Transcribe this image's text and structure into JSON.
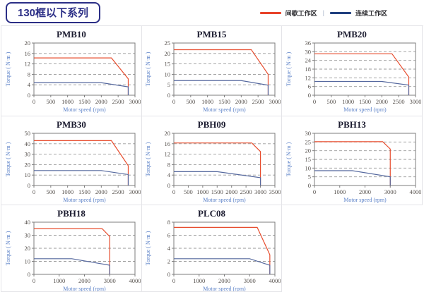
{
  "header": {
    "title": "130框以下系列"
  },
  "legend": {
    "items": [
      {
        "label": "间歇工作区",
        "color": "#e8432a"
      },
      {
        "label": "连续工作区",
        "color": "#20407f"
      }
    ],
    "separator": "|"
  },
  "chart_data": [
    {
      "type": "line",
      "title": "PMB10",
      "xlabel": "Motor speed (rpm)",
      "ylabel": "Torque ( N·m )",
      "xlim": [
        0,
        3000
      ],
      "ylim": [
        0,
        20
      ],
      "xticks": [
        0,
        500,
        1000,
        1500,
        2000,
        2500,
        3000
      ],
      "yticks": [
        0,
        4,
        8,
        12,
        16,
        20
      ],
      "grid": "horizontal-dashed",
      "legend_position": "none",
      "series": [
        {
          "name": "间歇工作区",
          "color": "#e74c2d",
          "points": [
            [
              0,
              14.3
            ],
            [
              2300,
              14.3
            ],
            [
              2800,
              6.3
            ],
            [
              2800,
              0
            ]
          ]
        },
        {
          "name": "连续工作区",
          "color": "#55689e",
          "points": [
            [
              0,
              4.8
            ],
            [
              2000,
              4.8
            ],
            [
              2800,
              3.2
            ],
            [
              2800,
              0
            ]
          ]
        }
      ]
    },
    {
      "type": "line",
      "title": "PMB15",
      "xlabel": "Motor speed (rpm)",
      "ylabel": "Torque ( N·m )",
      "xlim": [
        0,
        3000
      ],
      "ylim": [
        0,
        25
      ],
      "xticks": [
        0,
        500,
        1000,
        1500,
        2000,
        2500,
        3000
      ],
      "yticks": [
        0,
        5,
        10,
        15,
        20,
        25
      ],
      "grid": "horizontal-dashed",
      "legend_position": "none",
      "series": [
        {
          "name": "间歇工作区",
          "color": "#e74c2d",
          "points": [
            [
              0,
              21.8
            ],
            [
              2300,
              21.8
            ],
            [
              2800,
              10
            ],
            [
              2800,
              0
            ]
          ]
        },
        {
          "name": "连续工作区",
          "color": "#55689e",
          "points": [
            [
              0,
              7
            ],
            [
              2000,
              7
            ],
            [
              2800,
              4.8
            ],
            [
              2800,
              0
            ]
          ]
        }
      ]
    },
    {
      "type": "line",
      "title": "PMB20",
      "xlabel": "Motor speed (rpm)",
      "ylabel": "Torque ( N·m )",
      "xlim": [
        0,
        3000
      ],
      "ylim": [
        0,
        36
      ],
      "xticks": [
        0,
        500,
        1000,
        1500,
        2000,
        2500,
        3000
      ],
      "yticks": [
        0,
        6,
        12,
        18,
        24,
        30,
        36
      ],
      "grid": "horizontal-dashed",
      "legend_position": "none",
      "series": [
        {
          "name": "间歇工作区",
          "color": "#e74c2d",
          "points": [
            [
              0,
              28.6
            ],
            [
              2300,
              28.6
            ],
            [
              2800,
              12.5
            ],
            [
              2800,
              0
            ]
          ]
        },
        {
          "name": "连续工作区",
          "color": "#55689e",
          "points": [
            [
              0,
              9.5
            ],
            [
              2000,
              9.5
            ],
            [
              2800,
              7
            ],
            [
              2800,
              0
            ]
          ]
        }
      ]
    },
    {
      "type": "line",
      "title": "PMB30",
      "xlabel": "Motor speed (rpm)",
      "ylabel": "Torque ( N·m )",
      "xlim": [
        0,
        3000
      ],
      "ylim": [
        0,
        50
      ],
      "xticks": [
        0,
        500,
        1000,
        1500,
        2000,
        2500,
        3000
      ],
      "yticks": [
        0,
        10,
        20,
        30,
        40,
        50
      ],
      "grid": "horizontal-dashed",
      "legend_position": "none",
      "series": [
        {
          "name": "间歇工作区",
          "color": "#e74c2d",
          "points": [
            [
              0,
              43
            ],
            [
              2300,
              43
            ],
            [
              2800,
              19
            ],
            [
              2800,
              0
            ]
          ]
        },
        {
          "name": "连续工作区",
          "color": "#55689e",
          "points": [
            [
              0,
              14.3
            ],
            [
              2000,
              14.3
            ],
            [
              2800,
              10.5
            ],
            [
              2800,
              0
            ]
          ]
        }
      ]
    },
    {
      "type": "line",
      "title": "PBH09",
      "xlabel": "Motor speed (rpm)",
      "ylabel": "Torque ( N·m )",
      "xlim": [
        0,
        3500
      ],
      "ylim": [
        0,
        20
      ],
      "xticks": [
        0,
        500,
        1000,
        1500,
        2000,
        2500,
        3000,
        3500
      ],
      "yticks": [
        0,
        4,
        8,
        12,
        16,
        20
      ],
      "grid": "horizontal-dashed",
      "legend_position": "none",
      "series": [
        {
          "name": "间歇工作区",
          "color": "#e74c2d",
          "points": [
            [
              0,
              16.3
            ],
            [
              2700,
              16.3
            ],
            [
              3000,
              13
            ],
            [
              3000,
              0
            ]
          ]
        },
        {
          "name": "连续工作区",
          "color": "#55689e",
          "points": [
            [
              0,
              5.3
            ],
            [
              1500,
              5.3
            ],
            [
              3000,
              3
            ],
            [
              3000,
              0
            ]
          ]
        }
      ]
    },
    {
      "type": "line",
      "title": "PBH13",
      "xlabel": "Motor speed (rpm)",
      "ylabel": "Torque ( N·m )",
      "xlim": [
        0,
        4000
      ],
      "ylim": [
        0,
        30
      ],
      "xticks": [
        0,
        1000,
        2000,
        3000,
        4000
      ],
      "yticks": [
        0,
        5,
        10,
        15,
        20,
        25,
        30
      ],
      "grid": "horizontal-dashed",
      "legend_position": "none",
      "series": [
        {
          "name": "间歇工作区",
          "color": "#e74c2d",
          "points": [
            [
              0,
              25.2
            ],
            [
              2700,
              25.2
            ],
            [
              3000,
              21
            ],
            [
              3000,
              0
            ]
          ]
        },
        {
          "name": "连续工作区",
          "color": "#55689e",
          "points": [
            [
              0,
              8.5
            ],
            [
              1500,
              8.5
            ],
            [
              3000,
              5
            ],
            [
              3000,
              0
            ]
          ]
        }
      ]
    },
    {
      "type": "line",
      "title": "PBH18",
      "xlabel": "Motor speed (rpm)",
      "ylabel": "Torque ( N·m )",
      "xlim": [
        0,
        4000
      ],
      "ylim": [
        0,
        40
      ],
      "xticks": [
        0,
        1000,
        2000,
        3000,
        4000
      ],
      "yticks": [
        0,
        10,
        20,
        30,
        40
      ],
      "grid": "horizontal-dashed",
      "legend_position": "none",
      "series": [
        {
          "name": "间歇工作区",
          "color": "#e74c2d",
          "points": [
            [
              0,
              35
            ],
            [
              2700,
              35
            ],
            [
              3000,
              29
            ],
            [
              3000,
              0
            ]
          ]
        },
        {
          "name": "连续工作区",
          "color": "#55689e",
          "points": [
            [
              0,
              12
            ],
            [
              1500,
              12
            ],
            [
              3000,
              7
            ],
            [
              3000,
              0
            ]
          ]
        }
      ]
    },
    {
      "type": "line",
      "title": "PLC08",
      "xlabel": "Motor speed (rpm)",
      "ylabel": "Torque ( N·m )",
      "xlim": [
        0,
        4000
      ],
      "ylim": [
        0,
        8
      ],
      "xticks": [
        0,
        1000,
        2000,
        3000,
        4000
      ],
      "yticks": [
        0,
        2,
        4,
        6,
        8
      ],
      "grid": "horizontal-dashed",
      "legend_position": "none",
      "series": [
        {
          "name": "间歇工作区",
          "color": "#e74c2d",
          "points": [
            [
              0,
              7.2
            ],
            [
              3300,
              7.2
            ],
            [
              3800,
              3
            ],
            [
              3800,
              0
            ]
          ]
        },
        {
          "name": "连续工作区",
          "color": "#55689e",
          "points": [
            [
              0,
              2.4
            ],
            [
              3000,
              2.4
            ],
            [
              3800,
              1.4
            ],
            [
              3800,
              0
            ]
          ]
        }
      ]
    }
  ]
}
